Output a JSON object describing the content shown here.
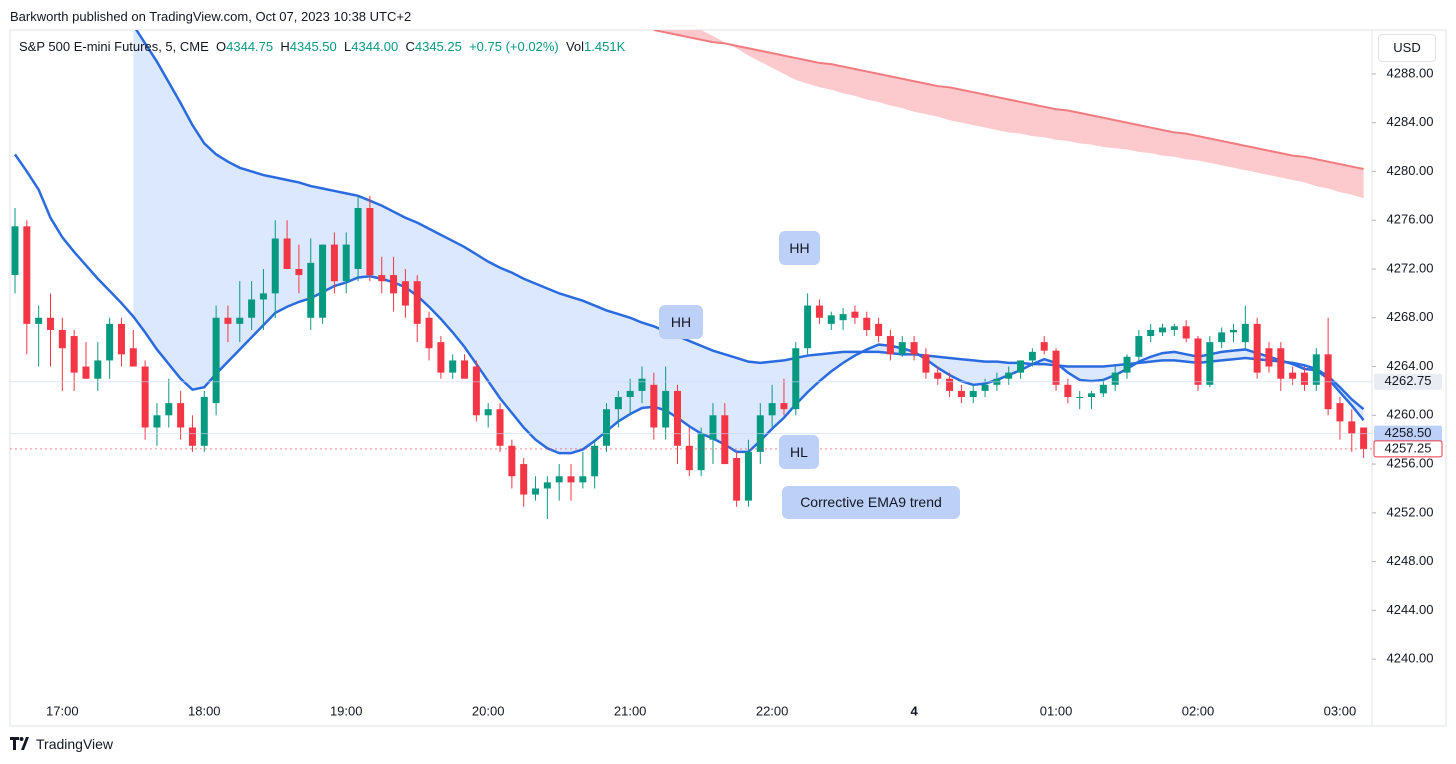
{
  "header": "Barkworth published on TradingView.com, Oct 07, 2023 10:38 UTC+2",
  "legend": {
    "symbol": "S&P 500 E-mini Futures, 5, CME",
    "ohlc": [
      [
        "O",
        "4344.75"
      ],
      [
        "H",
        "4345.50"
      ],
      [
        "L",
        "4344.00"
      ],
      [
        "C",
        "4345.25"
      ]
    ],
    "change": "+0.75 (+0.02%)",
    "volume_label": "Vol",
    "volume": "1.451K"
  },
  "currency": "USD",
  "brand": "TradingView",
  "chart_data": {
    "type": "candlestick",
    "up_color": "#089981",
    "down_color": "#f23645",
    "ylim": [
      4234.6,
      4291.6
    ],
    "yticks": [
      {
        "value": 4240,
        "label": "4240.00"
      },
      {
        "value": 4244,
        "label": "4244.00"
      },
      {
        "value": 4248,
        "label": "4248.00"
      },
      {
        "value": 4252,
        "label": "4252.00"
      },
      {
        "value": 4256,
        "label": "4256.00"
      },
      {
        "value": 4260,
        "label": "4260.00"
      },
      {
        "value": 4264,
        "label": "4264.00"
      },
      {
        "value": 4268,
        "label": "4268.00"
      },
      {
        "value": 4272,
        "label": "4272.00"
      },
      {
        "value": 4276,
        "label": "4276.00"
      },
      {
        "value": 4280,
        "label": "4280.00"
      },
      {
        "value": 4284,
        "label": "4284.00"
      },
      {
        "value": 4288,
        "label": "4288.00"
      }
    ],
    "x_labels": [
      "17:00",
      "18:00",
      "19:00",
      "20:00",
      "21:00",
      "22:00",
      "4",
      "01:00",
      "02:00",
      "03:00"
    ],
    "candles": [
      [
        4271.5,
        4277,
        4270,
        4275.5
      ],
      [
        4275.5,
        4276,
        4265,
        4267.5
      ],
      [
        4267.5,
        4269,
        4264,
        4268
      ],
      [
        4268,
        4270,
        4264,
        4267
      ],
      [
        4267,
        4268,
        4262,
        4265.5
      ],
      [
        4266.5,
        4267,
        4262,
        4263.5
      ],
      [
        4264,
        4266,
        4263,
        4263
      ],
      [
        4263,
        4266,
        4262,
        4264.5
      ],
      [
        4264.5,
        4268,
        4263,
        4267.5
      ],
      [
        4267.5,
        4268,
        4264,
        4265
      ],
      [
        4265.5,
        4267,
        4264,
        4264
      ],
      [
        4264,
        4264.5,
        4258,
        4259
      ],
      [
        4259,
        4261,
        4257.5,
        4260
      ],
      [
        4260,
        4263,
        4259,
        4261
      ],
      [
        4261,
        4262,
        4258,
        4259
      ],
      [
        4259,
        4260,
        4257,
        4257.5
      ],
      [
        4257.5,
        4262,
        4257,
        4261.5
      ],
      [
        4261,
        4269,
        4260,
        4268
      ],
      [
        4268,
        4269,
        4266,
        4267.5
      ],
      [
        4267.5,
        4271,
        4266,
        4268
      ],
      [
        4268,
        4271,
        4267,
        4269.5
      ],
      [
        4269.5,
        4272,
        4267,
        4270
      ],
      [
        4270,
        4276,
        4268,
        4274.5
      ],
      [
        4274.5,
        4276,
        4272,
        4272
      ],
      [
        4272,
        4274,
        4270,
        4271.5
      ],
      [
        4268,
        4274.5,
        4267,
        4272.5
      ],
      [
        4268,
        4274,
        4267.5,
        4274
      ],
      [
        4274,
        4275,
        4270,
        4271
      ],
      [
        4271,
        4275,
        4270,
        4274
      ],
      [
        4272,
        4278,
        4271,
        4277
      ],
      [
        4277,
        4278,
        4271,
        4271.5
      ],
      [
        4271.5,
        4273,
        4270,
        4271
      ],
      [
        4271.5,
        4273,
        4268.5,
        4270
      ],
      [
        4271,
        4272,
        4268,
        4269
      ],
      [
        4271,
        4271.5,
        4266,
        4267.5
      ],
      [
        4268,
        4268.5,
        4264.5,
        4265.5
      ],
      [
        4266,
        4266.5,
        4263,
        4263.5
      ],
      [
        4263.5,
        4265,
        4263,
        4264.5
      ],
      [
        4264.5,
        4265,
        4263,
        4263
      ],
      [
        4264,
        4264.5,
        4259.5,
        4260
      ],
      [
        4260,
        4261,
        4259,
        4260.5
      ],
      [
        4260.5,
        4261,
        4257,
        4257.5
      ],
      [
        4257.5,
        4258,
        4254,
        4255
      ],
      [
        4256,
        4256.5,
        4252.5,
        4253.5
      ],
      [
        4253.5,
        4255,
        4253,
        4254
      ],
      [
        4254,
        4255,
        4251.5,
        4254.5
      ],
      [
        4254.5,
        4256,
        4253,
        4255
      ],
      [
        4255,
        4256,
        4253,
        4254.5
      ],
      [
        4254.5,
        4257,
        4254,
        4255
      ],
      [
        4255,
        4258,
        4254,
        4257.5
      ],
      [
        4257.5,
        4261,
        4257,
        4260.5
      ],
      [
        4260.5,
        4262,
        4259,
        4261.5
      ],
      [
        4261.5,
        4263,
        4260,
        4262
      ],
      [
        4262,
        4264,
        4261,
        4263
      ],
      [
        4262.5,
        4263.5,
        4258,
        4259
      ],
      [
        4259,
        4264,
        4258,
        4262
      ],
      [
        4262,
        4262.5,
        4256,
        4257.5
      ],
      [
        4257.5,
        4259,
        4255,
        4255.5
      ],
      [
        4255.5,
        4259,
        4255,
        4258.5
      ],
      [
        4258,
        4261,
        4256,
        4260
      ],
      [
        4260,
        4261,
        4256,
        4256
      ],
      [
        4256.5,
        4257,
        4252.5,
        4253
      ],
      [
        4253,
        4258,
        4252.5,
        4257
      ],
      [
        4257,
        4261,
        4256,
        4260
      ],
      [
        4260,
        4262.5,
        4259,
        4261
      ],
      [
        4261,
        4263,
        4260,
        4260.5
      ],
      [
        4260.5,
        4266,
        4260,
        4265.5
      ],
      [
        4265.5,
        4270,
        4265,
        4269
      ],
      [
        4269,
        4269.5,
        4267.5,
        4268
      ],
      [
        4267.5,
        4268.5,
        4267,
        4268.2
      ],
      [
        4267.8,
        4268.8,
        4267,
        4268.3
      ],
      [
        4268.5,
        4269,
        4267.5,
        4268
      ],
      [
        4268,
        4268.5,
        4266.5,
        4267
      ],
      [
        4267.5,
        4268,
        4266,
        4266.5
      ],
      [
        4266.5,
        4267,
        4264.5,
        4265
      ],
      [
        4265,
        4266.5,
        4264.8,
        4266
      ],
      [
        4266,
        4266.5,
        4264.5,
        4265
      ],
      [
        4265,
        4265.5,
        4263,
        4263.5
      ],
      [
        4263.5,
        4264,
        4262.5,
        4263
      ],
      [
        4263,
        4263.5,
        4261.5,
        4262
      ],
      [
        4262,
        4262.5,
        4261,
        4261.5
      ],
      [
        4261.5,
        4262.5,
        4261,
        4262
      ],
      [
        4262,
        4263,
        4261.5,
        4262.5
      ],
      [
        4262.5,
        4263.5,
        4262,
        4263
      ],
      [
        4263,
        4264,
        4262.5,
        4263.5
      ],
      [
        4263.5,
        4264.5,
        4263,
        4264.5
      ],
      [
        4264.5,
        4265.5,
        4264,
        4265.2
      ],
      [
        4266,
        4266.5,
        4265,
        4265.3
      ],
      [
        4265.3,
        4265.5,
        4262,
        4262.5
      ],
      [
        4262.5,
        4263,
        4261,
        4261.5
      ],
      [
        4261.5,
        4262,
        4260.5,
        4261.5
      ],
      [
        4261.5,
        4262,
        4260.5,
        4261.8
      ],
      [
        4261.8,
        4263,
        4261.5,
        4262.5
      ],
      [
        4262.5,
        4264,
        4262,
        4263.5
      ],
      [
        4263.5,
        4265,
        4263,
        4264.8
      ],
      [
        4264.8,
        4267,
        4264.5,
        4266.5
      ],
      [
        4266.5,
        4267.5,
        4266,
        4267
      ],
      [
        4266.8,
        4267.5,
        4266.5,
        4267.2
      ],
      [
        4267,
        4267.5,
        4266.5,
        4267.3
      ],
      [
        4267.3,
        4267.8,
        4266,
        4266.3
      ],
      [
        4266.3,
        4266.5,
        4262,
        4262.5
      ],
      [
        4262.5,
        4266.5,
        4262.3,
        4266
      ],
      [
        4266,
        4267.2,
        4265.5,
        4266.8
      ],
      [
        4266.8,
        4267.5,
        4266,
        4267
      ],
      [
        4266,
        4269,
        4265.5,
        4267.5
      ],
      [
        4267.5,
        4268,
        4263,
        4263.5
      ],
      [
        4265.5,
        4266,
        4263.5,
        4264
      ],
      [
        4265.5,
        4266,
        4262,
        4263
      ],
      [
        4263.5,
        4264,
        4262.5,
        4263
      ],
      [
        4263.5,
        4264,
        4262,
        4262.5
      ],
      [
        4262.5,
        4265.5,
        4262,
        4265
      ],
      [
        4265,
        4268,
        4260,
        4260.5
      ],
      [
        4261,
        4261.5,
        4258,
        4259.5
      ],
      [
        4259.5,
        4260.5,
        4257,
        4258.5
      ],
      [
        4259,
        4259,
        4256.5,
        4257.25
      ]
    ],
    "overlays": [
      {
        "color": "#2a6be0",
        "values": [
          null,
          null,
          null,
          null,
          null,
          null,
          null,
          null,
          null,
          null,
          4292.0,
          4290.5,
          4289,
          4287.3,
          4285.6,
          4283.8,
          4282.3,
          4281.4,
          4280.8,
          4280.3,
          4280.0,
          4279.7,
          4279.5,
          4279.3,
          4279.1,
          4278.8,
          4278.6,
          4278.4,
          4278.2,
          4278.0,
          4277.6,
          4277.2,
          4276.7,
          4276.2,
          4275.8,
          4275.3,
          4274.8,
          4274.3,
          4273.8,
          4273.2,
          4272.6,
          4272.1,
          4271.7,
          4271.2,
          4270.8,
          4270.4,
          4270.0,
          4269.7,
          4269.4,
          4269.0,
          4268.6,
          4268.3,
          4268.0,
          4267.6,
          4267.3,
          4266.9,
          4266.5,
          4266.1,
          4265.7,
          4265.3,
          4265.0,
          4264.7,
          4264.4,
          4264.3,
          4264.4,
          4264.5,
          4264.7,
          4264.9,
          4265.0,
          4265.1,
          4265.2,
          4265.2,
          4265.2,
          4265.2,
          4265.1,
          4265.0,
          4265.0,
          4264.9,
          4264.8,
          4264.7,
          4264.6,
          4264.5,
          4264.4,
          4264.4,
          4264.3,
          4264.3,
          4264.2,
          4264.2,
          4264.1,
          4264.0,
          4264.0,
          4264.0,
          4264.0,
          4264.1,
          4264.2,
          4264.3,
          4264.4,
          4264.5,
          4264.5,
          4264.4,
          4264.3,
          4264.4,
          4264.5,
          4264.6,
          4264.7,
          4264.6,
          4264.5,
          4264.4,
          4264.3,
          4264.1,
          4263.8,
          4263.2,
          4262.3,
          4261.3,
          4260.5
        ]
      },
      {
        "color": "#2a6be0",
        "values": [
          4281.4,
          4280.0,
          4278.5,
          4276.2,
          4274.6,
          4273.4,
          4272.3,
          4271.2,
          4270.2,
          4269.2,
          4268.1,
          4266.8,
          4265.4,
          4264.2,
          4263.0,
          4262.1,
          4262.3,
          4263.4,
          4264.4,
          4265.4,
          4266.4,
          4267.4,
          4268.4,
          4268.9,
          4269.3,
          4269.6,
          4270.1,
          4270.6,
          4270.9,
          4271.3,
          4271.4,
          4271.2,
          4270.9,
          4270.5,
          4269.8,
          4268.9,
          4267.9,
          4266.8,
          4265.6,
          4264.2,
          4262.8,
          4261.4,
          4260.2,
          4259.0,
          4258.0,
          4257.3,
          4256.9,
          4256.9,
          4257.2,
          4257.9,
          4258.7,
          4259.5,
          4260.1,
          4260.6,
          4260.7,
          4260.4,
          4259.8,
          4259.1,
          4258.5,
          4258.1,
          4257.6,
          4257.0,
          4257.0,
          4257.9,
          4258.9,
          4259.8,
          4260.9,
          4261.9,
          4262.8,
          4263.6,
          4264.3,
          4264.9,
          4265.4,
          4265.8,
          4265.7,
          4265.5,
          4265.2,
          4264.6,
          4263.9,
          4263.3,
          4262.8,
          4262.5,
          4262.6,
          4262.9,
          4263.3,
          4263.7,
          4264.2,
          4264.6,
          4264.3,
          4263.5,
          4262.9,
          4262.8,
          4262.9,
          4263.3,
          4263.8,
          4264.4,
          4264.8,
          4265.1,
          4265.2,
          4265.0,
          4264.8,
          4265.0,
          4265.2,
          4265.3,
          4265.4,
          4265.1,
          4264.8,
          4264.5,
          4264.2,
          4263.8,
          4263.7,
          4263.0,
          4261.9,
          4260.8,
          4259.6
        ]
      },
      {
        "color": "#f07b80",
        "values": [
          null,
          null,
          null,
          null,
          null,
          null,
          null,
          null,
          null,
          null,
          null,
          null,
          null,
          null,
          null,
          null,
          null,
          null,
          null,
          null,
          null,
          null,
          null,
          null,
          null,
          null,
          null,
          null,
          null,
          null,
          null,
          null,
          null,
          null,
          null,
          null,
          null,
          null,
          null,
          null,
          null,
          null,
          null,
          null,
          null,
          null,
          null,
          null,
          null,
          null,
          null,
          null,
          null,
          null,
          4291.6,
          4291.4,
          4291.2,
          4291.0,
          4290.8,
          4290.6,
          4290.5,
          4290.3,
          4290.1,
          4289.9,
          4289.7,
          4289.5,
          4289.3,
          4289.1,
          4288.9,
          4288.8,
          4288.6,
          4288.4,
          4288.2,
          4288.0,
          4287.8,
          4287.6,
          4287.4,
          4287.2,
          4287.0,
          4286.9,
          4286.7,
          4286.5,
          4286.3,
          4286.1,
          4285.9,
          4285.7,
          4285.5,
          4285.3,
          4285.1,
          4285.0,
          4284.8,
          4284.6,
          4284.4,
          4284.2,
          4284.0,
          4283.8,
          4283.6,
          4283.4,
          4283.2,
          4283.1,
          4282.9,
          4282.7,
          4282.5,
          4282.3,
          4282.1,
          4281.9,
          4281.7,
          4281.5,
          4281.3,
          4281.2,
          4281.0,
          4280.8,
          4280.6,
          4280.4,
          4280.2
        ]
      },
      {
        "color": "#fcc9cc",
        "values": [
          null,
          null,
          null,
          null,
          null,
          null,
          null,
          null,
          null,
          null,
          null,
          null,
          null,
          null,
          null,
          null,
          null,
          null,
          null,
          null,
          null,
          null,
          null,
          null,
          null,
          null,
          null,
          null,
          null,
          null,
          null,
          null,
          null,
          null,
          null,
          null,
          null,
          null,
          null,
          null,
          null,
          null,
          null,
          null,
          null,
          null,
          null,
          null,
          null,
          null,
          null,
          null,
          null,
          null,
          4292.4,
          4292.2,
          4292.0,
          4291.8,
          4291.6,
          4291.1,
          4290.6,
          4290.1,
          4289.5,
          4289.0,
          4288.5,
          4288.0,
          4287.5,
          4287.2,
          4286.9,
          4286.7,
          4286.4,
          4286.2,
          4285.9,
          4285.7,
          4285.4,
          4285.2,
          4284.9,
          4284.7,
          4284.5,
          4284.2,
          4284.0,
          4283.8,
          4283.6,
          4283.4,
          4283.2,
          4283.1,
          4282.9,
          4282.8,
          4282.6,
          4282.5,
          4282.3,
          4282.2,
          4282.0,
          4281.9,
          4281.8,
          4281.6,
          4281.5,
          4281.3,
          4281.2,
          4281.0,
          4280.9,
          4280.7,
          4280.5,
          4280.3,
          4280.1,
          4279.9,
          4279.7,
          4279.5,
          4279.3,
          4279.1,
          4278.8,
          4278.6,
          4278.3,
          4278.1,
          4277.8
        ]
      }
    ],
    "price_labels": [
      {
        "value": 4262.75,
        "label": "4262.75",
        "color": "#e9ecf2"
      },
      {
        "value": 4258.5,
        "label": "4258.50",
        "color": "#bcd0f8"
      },
      {
        "value": 4257.25,
        "label": "4257.25",
        "color": "#f23645"
      }
    ],
    "annotations": [
      "HH",
      "HH",
      "HL",
      "Corrective EMA9 trend"
    ]
  }
}
